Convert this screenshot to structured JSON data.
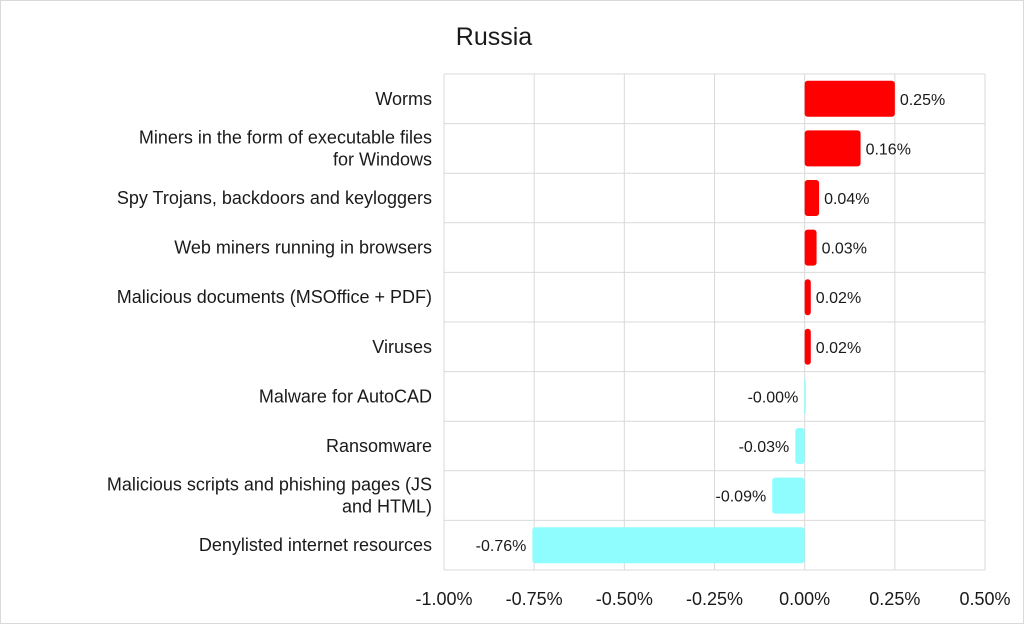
{
  "chart_data": {
    "type": "bar",
    "orientation": "horizontal",
    "title": "Russia",
    "xlabel": "",
    "ylabel": "",
    "xlim": [
      -1.0,
      0.5
    ],
    "x_ticks": [
      -1.0,
      -0.75,
      -0.5,
      -0.25,
      0.0,
      0.25,
      0.5
    ],
    "x_tick_labels": [
      "-1.00%",
      "-0.75%",
      "-0.50%",
      "-0.25%",
      "0.00%",
      "0.25%",
      "0.50%"
    ],
    "grid": true,
    "legend": "none",
    "categories": [
      [
        "Worms"
      ],
      [
        "Miners in the form of executable files",
        "for Windows"
      ],
      [
        "Spy Trojans, backdoors and keyloggers"
      ],
      [
        "Web miners running in browsers"
      ],
      [
        "Malicious documents (MSOffice + PDF)"
      ],
      [
        "Viruses"
      ],
      [
        "Malware for AutoCAD"
      ],
      [
        "Ransomware"
      ],
      [
        "Malicious scripts and phishing pages (JS",
        "and HTML)"
      ],
      [
        "Denylisted internet resources"
      ]
    ],
    "values": [
      0.25,
      0.155,
      0.04,
      0.033,
      0.017,
      0.017,
      -0.001,
      -0.026,
      -0.09,
      -0.755
    ],
    "value_labels": [
      "0.25%",
      "0.16%",
      "0.04%",
      "0.03%",
      "0.02%",
      "0.02%",
      "-0.00%",
      "-0.03%",
      "-0.09%",
      "-0.76%"
    ],
    "colors": {
      "positive": "#ff0000",
      "negative": "#8ffdfd"
    }
  }
}
